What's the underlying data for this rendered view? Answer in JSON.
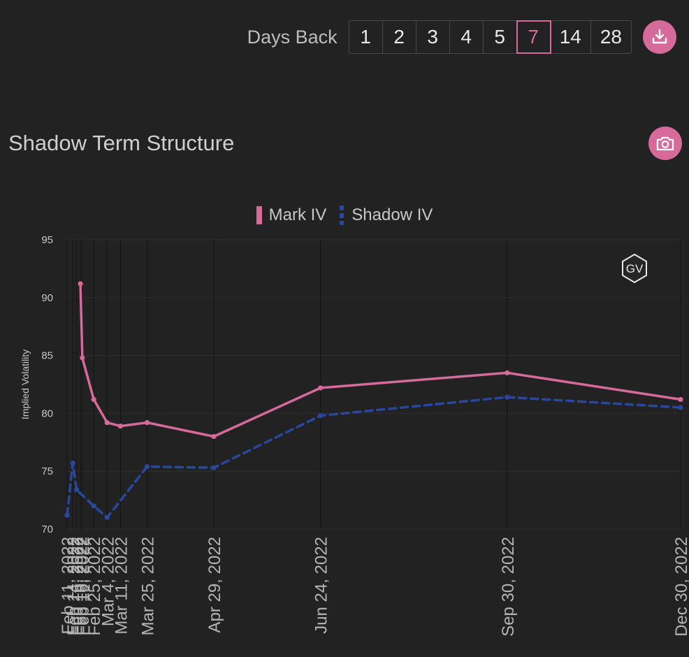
{
  "controls": {
    "days_back_label": "Days Back",
    "days_options": [
      "1",
      "2",
      "3",
      "4",
      "5",
      "7",
      "14",
      "28"
    ],
    "active_days": "7"
  },
  "chart_title": "Shadow Term Structure",
  "logo_text": "GV",
  "colors": {
    "background": "#222223",
    "mark": "#d56a9b",
    "shadow": "#2848a0",
    "accent": "#d56a9b"
  },
  "chart_data": {
    "type": "line",
    "title": "Shadow Term Structure",
    "xlabel": "",
    "ylabel": "Implied Volatility",
    "ylim": [
      70,
      95
    ],
    "yticks": [
      70,
      75,
      80,
      85,
      90,
      95
    ],
    "grid": true,
    "legend_position": "top-center",
    "x": [
      "Feb 11, 2022",
      "Feb 14, 2022",
      "Feb 16, 2022",
      "Feb 18, 2022",
      "Feb 19, 2022",
      "Feb 25, 2022",
      "Mar 4, 2022",
      "Mar 11, 2022",
      "Mar 25, 2022",
      "Apr 29, 2022",
      "Jun 24, 2022",
      "Sep 30, 2022",
      "Dec 30, 2022"
    ],
    "x_dates": [
      "2022-02-11",
      "2022-02-14",
      "2022-02-16",
      "2022-02-18",
      "2022-02-19",
      "2022-02-25",
      "2022-03-04",
      "2022-03-11",
      "2022-03-25",
      "2022-04-29",
      "2022-06-24",
      "2022-09-30",
      "2022-12-30"
    ],
    "series": [
      {
        "name": "Mark IV",
        "style": "solid",
        "values": [
          null,
          null,
          null,
          91.2,
          84.8,
          81.2,
          79.2,
          78.9,
          79.2,
          78.0,
          82.2,
          83.5,
          81.2
        ]
      },
      {
        "name": "Shadow IV",
        "style": "dashed",
        "values": [
          71.2,
          75.7,
          73.4,
          null,
          null,
          72.0,
          71.0,
          null,
          75.4,
          75.3,
          79.8,
          81.4,
          80.5
        ]
      }
    ]
  }
}
